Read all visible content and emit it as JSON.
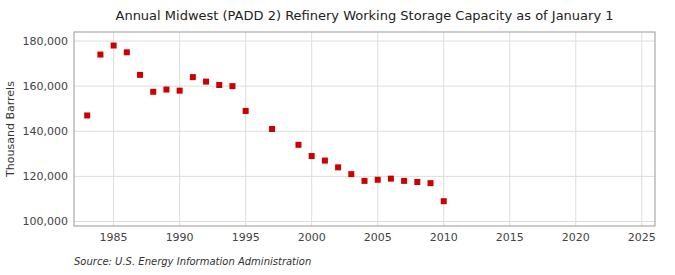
{
  "chart_data": {
    "type": "scatter",
    "title": "Annual Midwest (PADD 2) Refinery Working Storage Capacity as of January 1",
    "ylabel": "Thousand Barrels",
    "annotation": "Source: U.S. Energy Information Administration",
    "x": [
      1983,
      1984,
      1985,
      1986,
      1987,
      1988,
      1989,
      1990,
      1991,
      1992,
      1993,
      1994,
      1995,
      1997,
      1999,
      2000,
      2001,
      2002,
      2003,
      2004,
      2005,
      2006,
      2007,
      2008,
      2009,
      2010
    ],
    "values": [
      147000,
      174000,
      178000,
      175000,
      165000,
      157500,
      158500,
      158000,
      164000,
      162000,
      160500,
      160000,
      149000,
      141000,
      134000,
      129000,
      127000,
      124000,
      121000,
      118000,
      118500,
      119000,
      118000,
      117500,
      117000,
      109000
    ],
    "color": "#cc0000",
    "marker": "square",
    "xlim": [
      1982,
      2026
    ],
    "ylim": [
      98000,
      184000
    ],
    "xticks": [
      1985,
      1990,
      1995,
      2000,
      2005,
      2010,
      2015,
      2020,
      2025
    ],
    "yticks": [
      {
        "value": 100000,
        "label": "100,000"
      },
      {
        "value": 120000,
        "label": "120,000"
      },
      {
        "value": 140000,
        "label": "140,000"
      },
      {
        "value": 160000,
        "label": "160,000"
      },
      {
        "value": 180000,
        "label": "180,000"
      }
    ],
    "grid": true
  }
}
